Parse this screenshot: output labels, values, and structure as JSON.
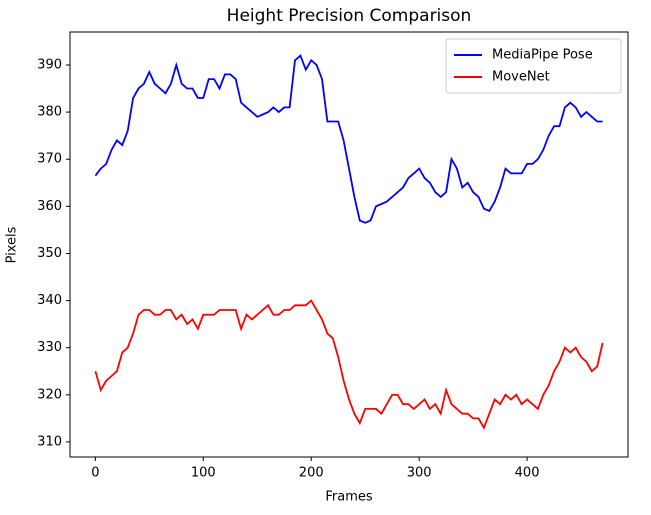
{
  "chart_data": {
    "type": "line",
    "title": "Height Precision Comparison",
    "x_label": "Frames",
    "y_label": "Pixels",
    "x": [
      0,
      5,
      10,
      15,
      20,
      25,
      30,
      35,
      40,
      45,
      50,
      55,
      60,
      65,
      70,
      75,
      80,
      85,
      90,
      95,
      100,
      105,
      110,
      115,
      120,
      125,
      130,
      135,
      140,
      145,
      150,
      155,
      160,
      165,
      170,
      175,
      180,
      185,
      190,
      195,
      200,
      205,
      210,
      215,
      220,
      225,
      230,
      235,
      240,
      245,
      250,
      255,
      260,
      265,
      270,
      275,
      280,
      285,
      290,
      295,
      300,
      305,
      310,
      315,
      320,
      325,
      330,
      335,
      340,
      345,
      350,
      355,
      360,
      365,
      370,
      375,
      380,
      385,
      390,
      395,
      400,
      405,
      410,
      415,
      420,
      425,
      430,
      435,
      440,
      445,
      450,
      455,
      460,
      465,
      470
    ],
    "series": [
      {
        "name": "MediaPipe Pose",
        "color": "#0000ff",
        "values": [
          366.5,
          368,
          369,
          372,
          374,
          373,
          376,
          383,
          385,
          386,
          388.5,
          386,
          385,
          384,
          386,
          390,
          386,
          385,
          385,
          383,
          383,
          387,
          387,
          385,
          388,
          388,
          387,
          382,
          381,
          380,
          379,
          379.5,
          380,
          381,
          380,
          381,
          381,
          391,
          392,
          389,
          391,
          390,
          387,
          378,
          378,
          378,
          374,
          368,
          362,
          357,
          356.5,
          357,
          360,
          360.5,
          361,
          362,
          363,
          364,
          366,
          367,
          368,
          366,
          365,
          363,
          362,
          363,
          370,
          368,
          364,
          365,
          363,
          362,
          359.5,
          359,
          361,
          364,
          368,
          367,
          367,
          367,
          369,
          369,
          370,
          372,
          375,
          377,
          377,
          381,
          382,
          381,
          379,
          380,
          379,
          378,
          378
        ]
      },
      {
        "name": "MoveNet",
        "color": "#ff0000",
        "values": [
          325,
          321,
          323,
          324,
          325,
          329,
          330,
          333,
          337,
          338,
          338,
          337,
          337,
          338,
          338,
          336,
          337,
          335,
          336,
          334,
          337,
          337,
          337,
          338,
          338,
          338,
          338,
          334,
          337,
          336,
          337,
          338,
          339,
          337,
          337,
          338,
          338,
          339,
          339,
          339,
          340,
          338,
          336,
          333,
          332,
          328,
          323,
          319,
          316,
          314,
          317,
          317,
          317,
          316,
          318,
          320,
          320,
          318,
          318,
          317,
          318,
          319,
          317,
          318,
          316,
          321,
          318,
          317,
          316,
          316,
          315,
          315,
          313,
          316,
          319,
          318,
          320,
          319,
          320,
          318,
          319,
          318,
          317,
          320,
          322,
          325,
          327,
          330,
          329,
          330,
          328,
          327,
          325,
          326,
          331
        ]
      }
    ],
    "xlim": [
      -23.5,
      493.5
    ],
    "ylim": [
      306.8,
      397.0
    ],
    "xticks": [
      0,
      100,
      200,
      300,
      400
    ],
    "yticks": [
      310,
      320,
      330,
      340,
      350,
      360,
      370,
      380,
      390
    ],
    "legend": "upper right"
  }
}
